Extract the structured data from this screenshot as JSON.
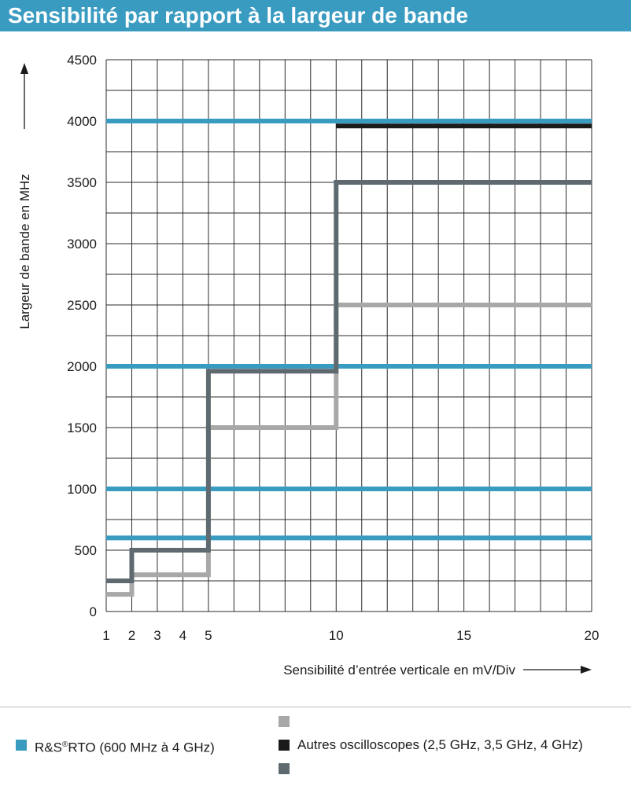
{
  "header": {
    "title": "Sensibilité par rapport à la largeur de bande"
  },
  "colors": {
    "header_bg": "#3a9bc1",
    "rto": "#3a9bc1",
    "other_light": "#a8a8a8",
    "other_black": "#1a1a1a",
    "other_dark": "#5f6a70"
  },
  "chart_data": {
    "type": "line",
    "title": "Sensibilité par rapport à la largeur de bande",
    "xlabel": "Sensibilité d’entrée verticale en mV/Div",
    "ylabel": "Largeur de bande en MHz",
    "xlim": [
      1,
      20
    ],
    "ylim": [
      0,
      4500
    ],
    "x_ticks": [
      1,
      2,
      3,
      4,
      5,
      10,
      15,
      20
    ],
    "y_ticks": [
      0,
      500,
      1000,
      1500,
      2000,
      2500,
      3000,
      3500,
      4000,
      4500
    ],
    "grid": true,
    "series": [
      {
        "group": "rto",
        "color": "#3a9bc1",
        "step": false,
        "x": [
          1,
          20
        ],
        "y": [
          600,
          600
        ]
      },
      {
        "group": "rto",
        "color": "#3a9bc1",
        "step": false,
        "x": [
          1,
          20
        ],
        "y": [
          1000,
          1000
        ]
      },
      {
        "group": "rto",
        "color": "#3a9bc1",
        "step": false,
        "x": [
          1,
          20
        ],
        "y": [
          2000,
          2000
        ]
      },
      {
        "group": "rto",
        "color": "#3a9bc1",
        "step": false,
        "x": [
          1,
          20
        ],
        "y": [
          4000,
          4000
        ]
      },
      {
        "group": "other_2_5",
        "color": "#a8a8a8",
        "step": true,
        "x": [
          1,
          2,
          5,
          10,
          20
        ],
        "y": [
          140,
          300,
          1500,
          2500,
          2500
        ]
      },
      {
        "group": "other_3_5",
        "color": "#5f6a70",
        "step": true,
        "x": [
          1,
          2,
          5,
          10,
          20
        ],
        "y": [
          250,
          500,
          1960,
          3500,
          3500
        ]
      },
      {
        "group": "other_4",
        "color": "#1a1a1a",
        "step": true,
        "x": [
          10,
          20
        ],
        "y": [
          3960,
          3960
        ]
      }
    ],
    "legend": {
      "placement": "bottom",
      "items": [
        {
          "label": "R&S",
          "sup": "®",
          "label_rest": "RTO (600 MHz à 4 GHz)",
          "color": "#3a9bc1"
        },
        {
          "label": "Autres oscilloscopes (2,5 GHz, 3,5 GHz, 4 GHz)",
          "color": "#1a1a1a"
        }
      ]
    }
  }
}
